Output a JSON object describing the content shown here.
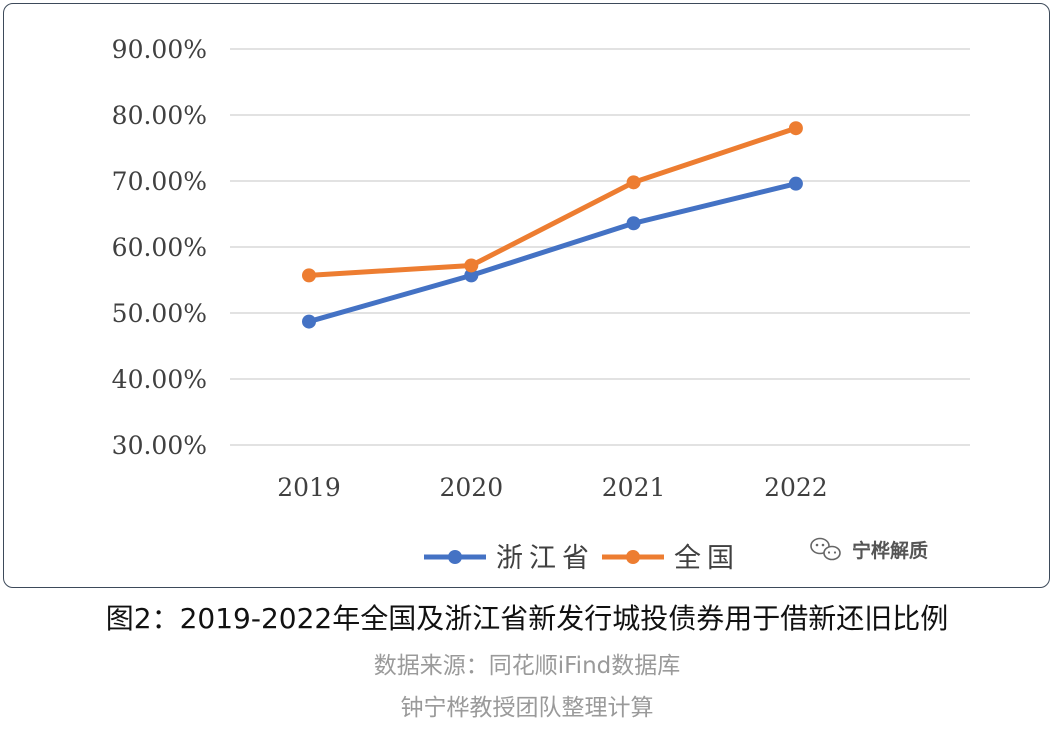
{
  "chart_data": {
    "type": "line",
    "categories": [
      "2019",
      "2020",
      "2021",
      "2022"
    ],
    "series": [
      {
        "name": "浙江省",
        "color": "#4472c4",
        "values": [
          48.7,
          55.7,
          63.6,
          69.6
        ]
      },
      {
        "name": "全国",
        "color": "#ed7d31",
        "values": [
          55.7,
          57.2,
          69.8,
          78.0
        ]
      }
    ],
    "yticks": [
      "30.00%",
      "40.00%",
      "50.00%",
      "60.00%",
      "70.00%",
      "80.00%",
      "90.00%"
    ],
    "ylim": [
      30,
      90
    ],
    "grid": true,
    "legend_position": "bottom"
  },
  "watermark": "宁桦解质",
  "caption": {
    "title": "图2：2019-2022年全国及浙江省新发行城投债券用于借新还旧比例",
    "source": "数据来源：同花顺iFind数据库",
    "credit": "钟宁桦教授团队整理计算"
  }
}
